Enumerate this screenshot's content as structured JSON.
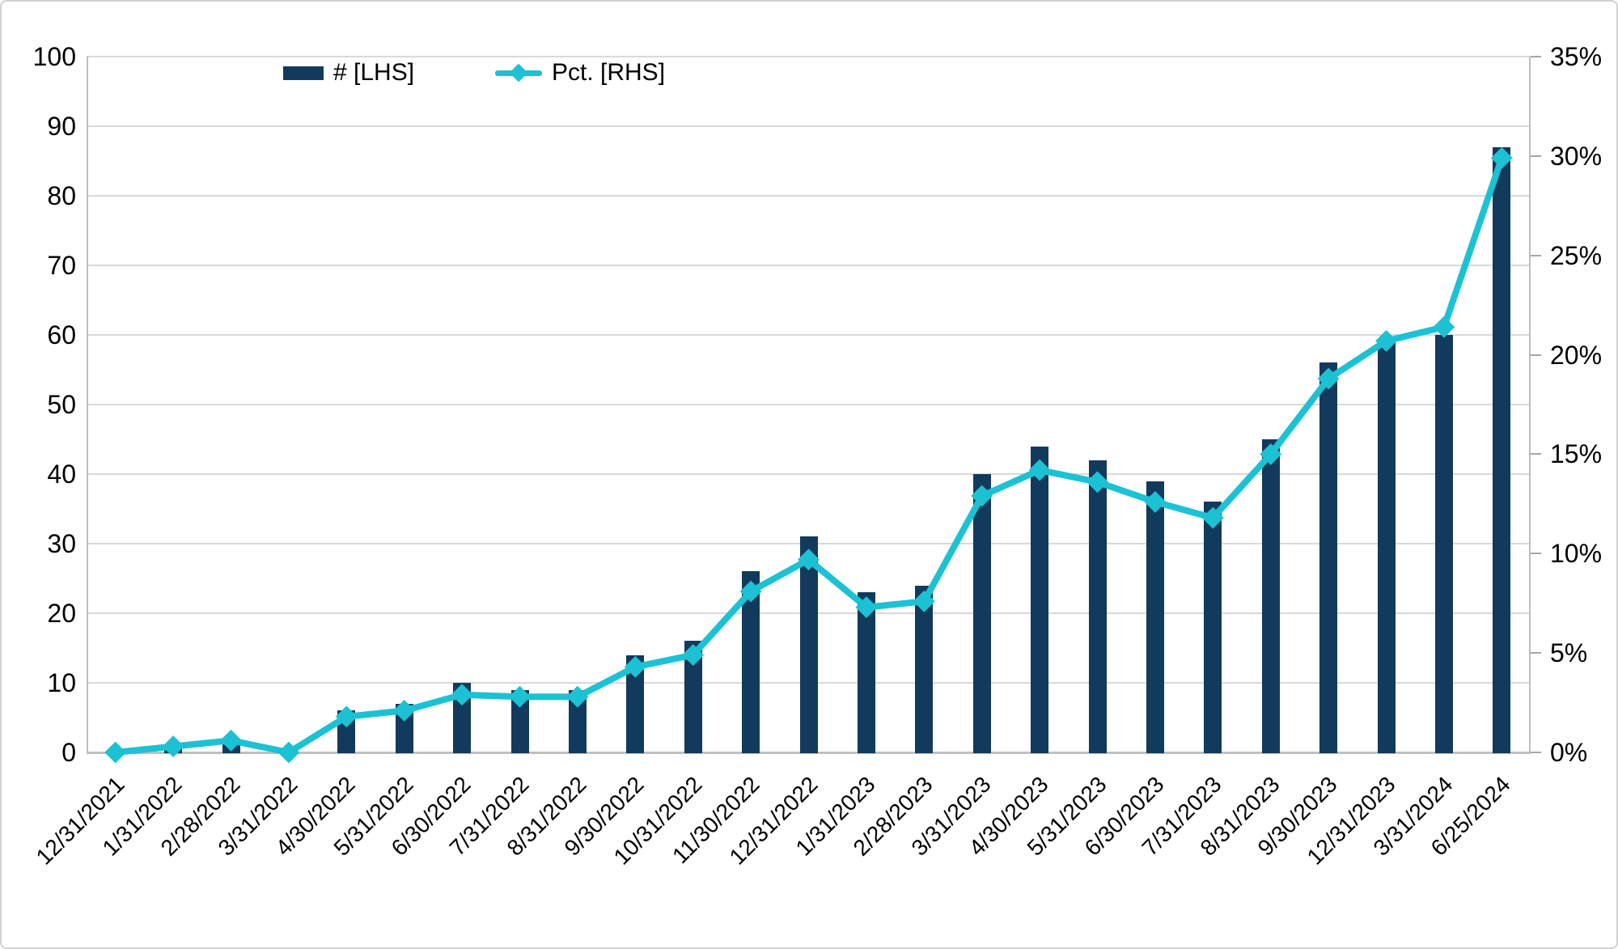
{
  "chart_data": {
    "type": "bar",
    "subtype": "combo-bar-line-dual-axis",
    "title": "",
    "categories": [
      "12/31/2021",
      "1/31/2022",
      "2/28/2022",
      "3/31/2022",
      "4/30/2022",
      "5/31/2022",
      "6/30/2022",
      "7/31/2022",
      "8/31/2022",
      "9/30/2022",
      "10/31/2022",
      "11/30/2022",
      "12/31/2022",
      "1/31/2023",
      "2/28/2023",
      "3/31/2023",
      "4/30/2023",
      "5/31/2023",
      "6/30/2023",
      "7/31/2023",
      "8/31/2023",
      "9/30/2023",
      "12/31/2023",
      "3/31/2024",
      "6/25/2024"
    ],
    "series": [
      {
        "name": "# [LHS]",
        "type": "bar",
        "axis": "left",
        "color": "#123a5c",
        "values": [
          0,
          1,
          2,
          0,
          6,
          7,
          10,
          9,
          9,
          14,
          16,
          26,
          31,
          23,
          24,
          40,
          44,
          42,
          39,
          36,
          45,
          56,
          59,
          60,
          87
        ]
      },
      {
        "name": "Pct. [RHS]",
        "type": "line",
        "axis": "right",
        "color": "#1cc2d4",
        "marker": "diamond",
        "values": [
          0.0,
          0.3,
          0.6,
          0.0,
          1.8,
          2.1,
          2.9,
          2.8,
          2.8,
          4.3,
          4.9,
          8.1,
          9.7,
          7.3,
          7.6,
          12.9,
          14.2,
          13.6,
          12.6,
          11.8,
          15.0,
          18.8,
          20.7,
          21.4,
          29.9
        ]
      }
    ],
    "left_axis": {
      "min": 0,
      "max": 100,
      "step": 10,
      "labels": [
        "0",
        "10",
        "20",
        "30",
        "40",
        "50",
        "60",
        "70",
        "80",
        "90",
        "100"
      ]
    },
    "right_axis": {
      "min": 0,
      "max": 35,
      "step": 5,
      "labels": [
        "0%",
        "5%",
        "10%",
        "15%",
        "20%",
        "25%",
        "30%",
        "35%"
      ]
    },
    "grid": true,
    "legend_position": "top"
  },
  "colors": {
    "bar": "#123a5c",
    "line": "#1cc2d4",
    "gridline": "#d9d9d9",
    "axis_line": "#bfbfbf",
    "text": "#000000",
    "background": "#ffffff",
    "border": "#d2d2d2"
  }
}
